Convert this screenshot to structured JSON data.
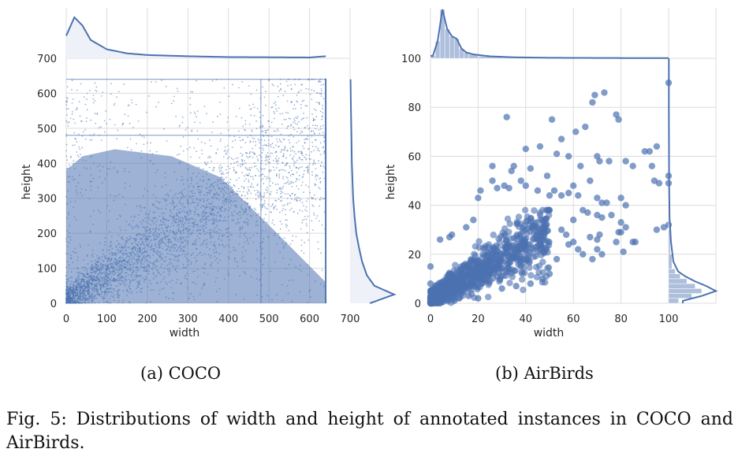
{
  "figure_caption": "Fig. 5: Distributions of width and height of annotated instances in COCO and AirBirds.",
  "colors": {
    "series": "#4c72b0",
    "grid": "#dcdcdc",
    "marginal_fill": "#eef1f7"
  },
  "chart_data": [
    {
      "type": "scatter",
      "panel_label": "(a) COCO",
      "xlabel": "width",
      "ylabel": "height",
      "xlim": [
        0,
        700
      ],
      "ylim": [
        0,
        700
      ],
      "x_ticks": [
        0,
        100,
        200,
        300,
        400,
        500,
        600
      ],
      "x_marginal_tick": 700,
      "y_ticks": [
        0,
        100,
        200,
        300,
        400,
        500,
        600
      ],
      "y_marginal_tick": 700,
      "x_extent_max": 640,
      "y_extent_max": 640,
      "grid": true,
      "marker": "small dots, very dense",
      "density_points": [
        {
          "x": 20,
          "y": 20
        },
        {
          "x": 40,
          "y": 30
        },
        {
          "x": 60,
          "y": 60
        },
        {
          "x": 100,
          "y": 80
        },
        {
          "x": 150,
          "y": 130
        },
        {
          "x": 200,
          "y": 180
        },
        {
          "x": 250,
          "y": 220
        },
        {
          "x": 300,
          "y": 260
        },
        {
          "x": 350,
          "y": 300
        },
        {
          "x": 400,
          "y": 330
        },
        {
          "x": 450,
          "y": 360
        },
        {
          "x": 500,
          "y": 390
        },
        {
          "x": 550,
          "y": 400
        },
        {
          "x": 600,
          "y": 410
        },
        {
          "x": 640,
          "y": 420
        },
        {
          "x": 640,
          "y": 480
        },
        {
          "x": 640,
          "y": 640
        },
        {
          "x": 480,
          "y": 640
        },
        {
          "x": 80,
          "y": 400
        },
        {
          "x": 30,
          "y": 250
        }
      ],
      "width_kde": {
        "x": [
          0,
          20,
          40,
          60,
          100,
          150,
          200,
          300,
          400,
          500,
          600,
          640
        ],
        "density": [
          0.55,
          1.0,
          0.8,
          0.45,
          0.22,
          0.12,
          0.08,
          0.05,
          0.03,
          0.025,
          0.02,
          0.05
        ]
      },
      "height_kde": {
        "y": [
          0,
          25,
          50,
          80,
          120,
          160,
          200,
          250,
          300,
          400,
          480,
          550,
          640
        ],
        "density": [
          0.45,
          1.0,
          0.55,
          0.38,
          0.27,
          0.2,
          0.14,
          0.1,
          0.07,
          0.04,
          0.03,
          0.02,
          0.01
        ]
      }
    },
    {
      "type": "scatter",
      "panel_label": "(b) AirBirds",
      "xlabel": "width",
      "ylabel": "height",
      "xlim": [
        0,
        100
      ],
      "ylim": [
        0,
        100
      ],
      "x_ticks": [
        0,
        20,
        40,
        60,
        80,
        100
      ],
      "y_ticks": [
        0,
        20,
        40,
        60,
        80,
        100
      ],
      "grid": true,
      "marker": "large semi-transparent circles",
      "points": [
        {
          "x": 100,
          "y": 90
        },
        {
          "x": 73,
          "y": 86
        },
        {
          "x": 69,
          "y": 85
        },
        {
          "x": 68,
          "y": 82
        },
        {
          "x": 78,
          "y": 77
        },
        {
          "x": 79,
          "y": 75
        },
        {
          "x": 32,
          "y": 76
        },
        {
          "x": 51,
          "y": 75
        },
        {
          "x": 65,
          "y": 72
        },
        {
          "x": 61,
          "y": 70
        },
        {
          "x": 55,
          "y": 67
        },
        {
          "x": 46,
          "y": 64
        },
        {
          "x": 40,
          "y": 63
        },
        {
          "x": 90,
          "y": 62
        },
        {
          "x": 92,
          "y": 62
        },
        {
          "x": 95,
          "y": 64
        },
        {
          "x": 53,
          "y": 61
        },
        {
          "x": 58,
          "y": 60
        },
        {
          "x": 70,
          "y": 60
        },
        {
          "x": 71,
          "y": 58
        },
        {
          "x": 75,
          "y": 58
        },
        {
          "x": 82,
          "y": 58
        },
        {
          "x": 26,
          "y": 56
        },
        {
          "x": 34,
          "y": 54
        },
        {
          "x": 35,
          "y": 56
        },
        {
          "x": 42,
          "y": 55
        },
        {
          "x": 63,
          "y": 56
        },
        {
          "x": 85,
          "y": 56
        },
        {
          "x": 93,
          "y": 56
        },
        {
          "x": 100,
          "y": 52
        },
        {
          "x": 26,
          "y": 50
        },
        {
          "x": 38,
          "y": 50
        },
        {
          "x": 40,
          "y": 48
        },
        {
          "x": 49,
          "y": 52
        },
        {
          "x": 52,
          "y": 46
        },
        {
          "x": 58,
          "y": 45
        },
        {
          "x": 60,
          "y": 48
        },
        {
          "x": 67,
          "y": 50
        },
        {
          "x": 94,
          "y": 50
        },
        {
          "x": 96,
          "y": 49
        },
        {
          "x": 100,
          "y": 49
        },
        {
          "x": 21,
          "y": 46
        },
        {
          "x": 28,
          "y": 47
        },
        {
          "x": 31,
          "y": 48
        },
        {
          "x": 33,
          "y": 47
        },
        {
          "x": 45,
          "y": 46
        },
        {
          "x": 50,
          "y": 44
        },
        {
          "x": 55,
          "y": 44
        },
        {
          "x": 62,
          "y": 44
        },
        {
          "x": 70,
          "y": 43
        },
        {
          "x": 80,
          "y": 43
        },
        {
          "x": 20,
          "y": 43
        },
        {
          "x": 72,
          "y": 41
        },
        {
          "x": 74,
          "y": 41
        },
        {
          "x": 82,
          "y": 40
        },
        {
          "x": 64,
          "y": 38
        },
        {
          "x": 66,
          "y": 37
        },
        {
          "x": 70,
          "y": 36
        },
        {
          "x": 72,
          "y": 35
        },
        {
          "x": 76,
          "y": 36
        },
        {
          "x": 60,
          "y": 34
        },
        {
          "x": 80,
          "y": 33
        },
        {
          "x": 100,
          "y": 32
        },
        {
          "x": 95,
          "y": 30
        },
        {
          "x": 98,
          "y": 31
        },
        {
          "x": 79,
          "y": 29
        },
        {
          "x": 80,
          "y": 29
        },
        {
          "x": 82,
          "y": 31
        },
        {
          "x": 67,
          "y": 27
        },
        {
          "x": 70,
          "y": 26
        },
        {
          "x": 71,
          "y": 28
        },
        {
          "x": 78,
          "y": 25
        },
        {
          "x": 85,
          "y": 25
        },
        {
          "x": 86,
          "y": 25
        },
        {
          "x": 81,
          "y": 21
        },
        {
          "x": 72,
          "y": 20
        },
        {
          "x": 68,
          "y": 18
        },
        {
          "x": 62,
          "y": 22
        },
        {
          "x": 64,
          "y": 20
        },
        {
          "x": 70,
          "y": 22
        },
        {
          "x": 58,
          "y": 24
        },
        {
          "x": 60,
          "y": 25
        },
        {
          "x": 55,
          "y": 30
        },
        {
          "x": 57,
          "y": 28
        },
        {
          "x": 53,
          "y": 18
        },
        {
          "x": 50,
          "y": 12
        },
        {
          "x": 47,
          "y": 10
        },
        {
          "x": 42,
          "y": 8
        },
        {
          "x": 36,
          "y": 7
        },
        {
          "x": 30,
          "y": 6
        },
        {
          "x": 20,
          "y": 2
        },
        {
          "x": 16,
          "y": 3
        },
        {
          "x": 12,
          "y": 2
        },
        {
          "x": 10,
          "y": 1
        },
        {
          "x": 18,
          "y": 34
        },
        {
          "x": 15,
          "y": 31
        },
        {
          "x": 9,
          "y": 28
        },
        {
          "x": 4,
          "y": 26
        },
        {
          "x": 8,
          "y": 27
        },
        {
          "x": 0,
          "y": 15
        },
        {
          "x": 0,
          "y": 8
        },
        {
          "x": 2,
          "y": 4
        }
      ],
      "dense_cluster": {
        "x_range": [
          0,
          50
        ],
        "y_range": [
          0,
          38
        ],
        "peak": {
          "x": 5,
          "y": 5
        }
      },
      "width_histogram": {
        "bins": [
          0,
          2,
          4,
          6,
          8,
          10,
          12,
          14,
          16,
          20,
          30,
          40,
          60,
          100
        ],
        "density": [
          0.05,
          0.35,
          1.0,
          0.6,
          0.45,
          0.4,
          0.2,
          0.12,
          0.08,
          0.04,
          0.02,
          0.01,
          0.005
        ]
      },
      "height_histogram": {
        "bins": [
          0,
          2,
          4,
          6,
          8,
          10,
          12,
          14,
          20,
          30,
          40,
          60,
          100
        ],
        "density": [
          0.3,
          0.7,
          1.0,
          0.8,
          0.55,
          0.35,
          0.2,
          0.1,
          0.05,
          0.02,
          0.01,
          0.005
        ]
      }
    }
  ]
}
